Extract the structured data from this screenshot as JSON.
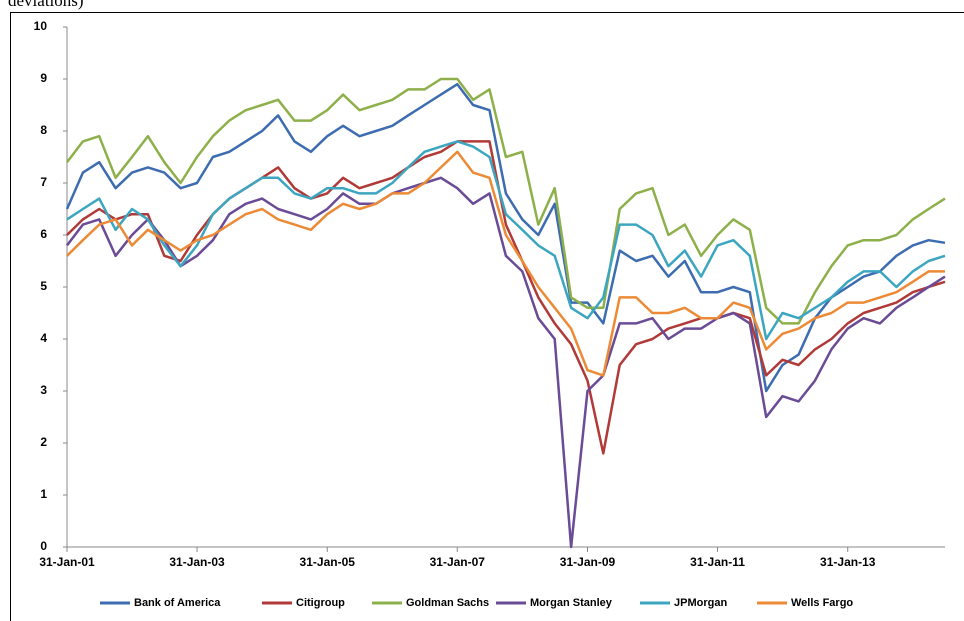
{
  "chart_data": {
    "type": "line",
    "note": "deviations)",
    "x": [
      "2001-01-31",
      "2001-04-30",
      "2001-07-31",
      "2001-10-31",
      "2002-01-31",
      "2002-04-30",
      "2002-07-31",
      "2002-10-31",
      "2003-01-31",
      "2003-04-30",
      "2003-07-31",
      "2003-10-31",
      "2004-01-31",
      "2004-04-30",
      "2004-07-31",
      "2004-10-31",
      "2005-01-31",
      "2005-04-30",
      "2005-07-31",
      "2005-10-31",
      "2006-01-31",
      "2006-04-30",
      "2006-07-31",
      "2006-10-31",
      "2007-01-31",
      "2007-04-30",
      "2007-07-31",
      "2007-10-31",
      "2008-01-31",
      "2008-04-30",
      "2008-07-31",
      "2008-10-31",
      "2009-01-31",
      "2009-04-30",
      "2009-07-31",
      "2009-10-31",
      "2010-01-31",
      "2010-04-30",
      "2010-07-31",
      "2010-10-31",
      "2011-01-31",
      "2011-04-30",
      "2011-07-31",
      "2011-10-31",
      "2012-01-31",
      "2012-04-30",
      "2012-07-31",
      "2012-10-31",
      "2013-01-31",
      "2013-04-30",
      "2013-07-31",
      "2013-10-31",
      "2014-01-31",
      "2014-04-30",
      "2014-07-31"
    ],
    "series": [
      {
        "name": "Bank of America",
        "color": "#3d6cb0",
        "values": [
          6.5,
          7.2,
          7.4,
          6.9,
          7.2,
          7.3,
          7.2,
          6.9,
          7.0,
          7.5,
          7.6,
          7.8,
          8.0,
          8.3,
          7.8,
          7.6,
          7.9,
          8.1,
          7.9,
          8.0,
          8.1,
          8.3,
          8.5,
          8.7,
          8.9,
          8.5,
          8.4,
          6.8,
          6.3,
          6.0,
          6.6,
          4.7,
          4.7,
          4.3,
          5.7,
          5.5,
          5.6,
          5.2,
          5.5,
          4.9,
          4.9,
          5.0,
          4.9,
          3.0,
          3.5,
          3.7,
          4.4,
          4.8,
          5.0,
          5.2,
          5.3,
          5.6,
          5.8,
          5.9,
          5.85
        ]
      },
      {
        "name": "Citigroup",
        "color": "#b03a38",
        "values": [
          6.0,
          6.3,
          6.5,
          6.3,
          6.4,
          6.4,
          5.6,
          5.5,
          6.0,
          6.4,
          6.7,
          6.9,
          7.1,
          7.3,
          6.9,
          6.7,
          6.8,
          7.1,
          6.9,
          7.0,
          7.1,
          7.3,
          7.5,
          7.6,
          7.8,
          7.8,
          7.8,
          6.2,
          5.5,
          4.8,
          4.3,
          3.9,
          3.2,
          1.8,
          3.5,
          3.9,
          4.0,
          4.2,
          4.3,
          4.4,
          4.4,
          4.5,
          4.4,
          3.3,
          3.6,
          3.5,
          3.8,
          4.0,
          4.3,
          4.5,
          4.6,
          4.7,
          4.9,
          5.0,
          5.1
        ]
      },
      {
        "name": "Goldman Sachs",
        "color": "#8db04a",
        "values": [
          7.4,
          7.8,
          7.9,
          7.1,
          7.5,
          7.9,
          7.4,
          7.0,
          7.5,
          7.9,
          8.2,
          8.4,
          8.5,
          8.6,
          8.2,
          8.2,
          8.4,
          8.7,
          8.4,
          8.5,
          8.6,
          8.8,
          8.8,
          9.0,
          9.0,
          8.6,
          8.8,
          7.5,
          7.6,
          6.2,
          6.9,
          4.8,
          4.6,
          4.6,
          6.5,
          6.8,
          6.9,
          6.0,
          6.2,
          5.6,
          6.0,
          6.3,
          6.1,
          4.6,
          4.3,
          4.3,
          4.9,
          5.4,
          5.8,
          5.9,
          5.9,
          6.0,
          6.3,
          6.5,
          6.7
        ]
      },
      {
        "name": "Morgan Stanley",
        "color": "#6a4b96",
        "values": [
          5.8,
          6.2,
          6.3,
          5.6,
          6.0,
          6.3,
          5.9,
          5.4,
          5.6,
          5.9,
          6.4,
          6.6,
          6.7,
          6.5,
          6.4,
          6.3,
          6.5,
          6.8,
          6.6,
          6.6,
          6.8,
          6.9,
          7.0,
          7.1,
          6.9,
          6.6,
          6.8,
          5.6,
          5.3,
          4.4,
          4.0,
          0,
          3.0,
          3.3,
          4.3,
          4.3,
          4.4,
          4.0,
          4.2,
          4.2,
          4.4,
          4.5,
          4.3,
          2.5,
          2.9,
          2.8,
          3.2,
          3.8,
          4.2,
          4.4,
          4.3,
          4.6,
          4.8,
          5.0,
          5.2
        ]
      },
      {
        "name": "JPMorgan",
        "color": "#3ca6c0",
        "values": [
          6.3,
          6.5,
          6.7,
          6.1,
          6.5,
          6.3,
          5.8,
          5.4,
          5.8,
          6.4,
          6.7,
          6.9,
          7.1,
          7.1,
          6.8,
          6.7,
          6.9,
          6.9,
          6.8,
          6.8,
          7.0,
          7.3,
          7.6,
          7.7,
          7.8,
          7.7,
          7.5,
          6.4,
          6.1,
          5.8,
          5.6,
          4.6,
          4.4,
          4.8,
          6.2,
          6.2,
          6.0,
          5.4,
          5.7,
          5.2,
          5.8,
          5.9,
          5.6,
          4.0,
          4.5,
          4.4,
          4.6,
          4.8,
          5.1,
          5.3,
          5.3,
          5.0,
          5.3,
          5.5,
          5.6
        ]
      },
      {
        "name": "Wells Fargo",
        "color": "#ec8a35",
        "values": [
          5.6,
          5.9,
          6.2,
          6.3,
          5.8,
          6.1,
          5.9,
          5.7,
          5.9,
          6.0,
          6.2,
          6.4,
          6.5,
          6.3,
          6.2,
          6.1,
          6.4,
          6.6,
          6.5,
          6.6,
          6.8,
          6.8,
          7.0,
          7.3,
          7.6,
          7.2,
          7.1,
          6.0,
          5.5,
          5.0,
          4.6,
          4.2,
          3.4,
          3.3,
          4.8,
          4.8,
          4.5,
          4.5,
          4.6,
          4.4,
          4.4,
          4.7,
          4.6,
          3.8,
          4.1,
          4.2,
          4.4,
          4.5,
          4.7,
          4.7,
          4.8,
          4.9,
          5.1,
          5.3,
          5.3
        ]
      }
    ],
    "xlim": [
      "2001-01-31",
      "2014-07-31"
    ],
    "xticks": [
      {
        "value": "2001-01-31",
        "label": "31-Jan-01"
      },
      {
        "value": "2003-01-31",
        "label": "31-Jan-03"
      },
      {
        "value": "2005-01-31",
        "label": "31-Jan-05"
      },
      {
        "value": "2007-01-31",
        "label": "31-Jan-07"
      },
      {
        "value": "2009-01-31",
        "label": "31-Jan-09"
      },
      {
        "value": "2011-01-31",
        "label": "31-Jan-11"
      },
      {
        "value": "2013-01-31",
        "label": "31-Jan-13"
      }
    ],
    "ylim": [
      0,
      10
    ],
    "yticks": [
      0,
      1,
      2,
      3,
      4,
      5,
      6,
      7,
      8,
      9,
      10
    ],
    "grid": false,
    "legend": "bottom"
  }
}
